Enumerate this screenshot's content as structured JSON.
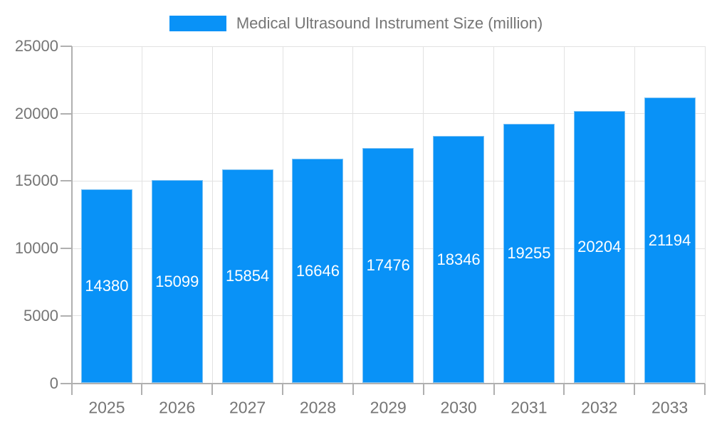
{
  "chart_data": {
    "type": "bar",
    "title": "Medical Ultrasound Instrument Size (million)",
    "series_name": "Medical Ultrasound Instrument Size (million)",
    "categories": [
      "2025",
      "2026",
      "2027",
      "2028",
      "2029",
      "2030",
      "2031",
      "2032",
      "2033"
    ],
    "values": [
      14380,
      15099,
      15854,
      16646,
      17476,
      18346,
      19255,
      20204,
      21194
    ],
    "value_labels": [
      "14380",
      "15099",
      "15854",
      "16646",
      "17476",
      "18346",
      "19255",
      "20204",
      "21194"
    ],
    "xlabel": "",
    "ylabel": "",
    "ylim": [
      0,
      25000
    ],
    "y_ticks": [
      0,
      5000,
      10000,
      15000,
      20000,
      25000
    ],
    "y_tick_labels": [
      "0",
      "5000",
      "10000",
      "15000",
      "20000",
      "25000"
    ],
    "grid": true,
    "legend_position": "top",
    "colors": {
      "bar": "#0992F7",
      "bar_edge": "#7EC2F3",
      "value_label": "#FFFFFF",
      "axis_text": "#757575",
      "axis_line": "#B0B0B0",
      "gridline": "#E2E2E2",
      "background": "#FFFFFF"
    }
  }
}
